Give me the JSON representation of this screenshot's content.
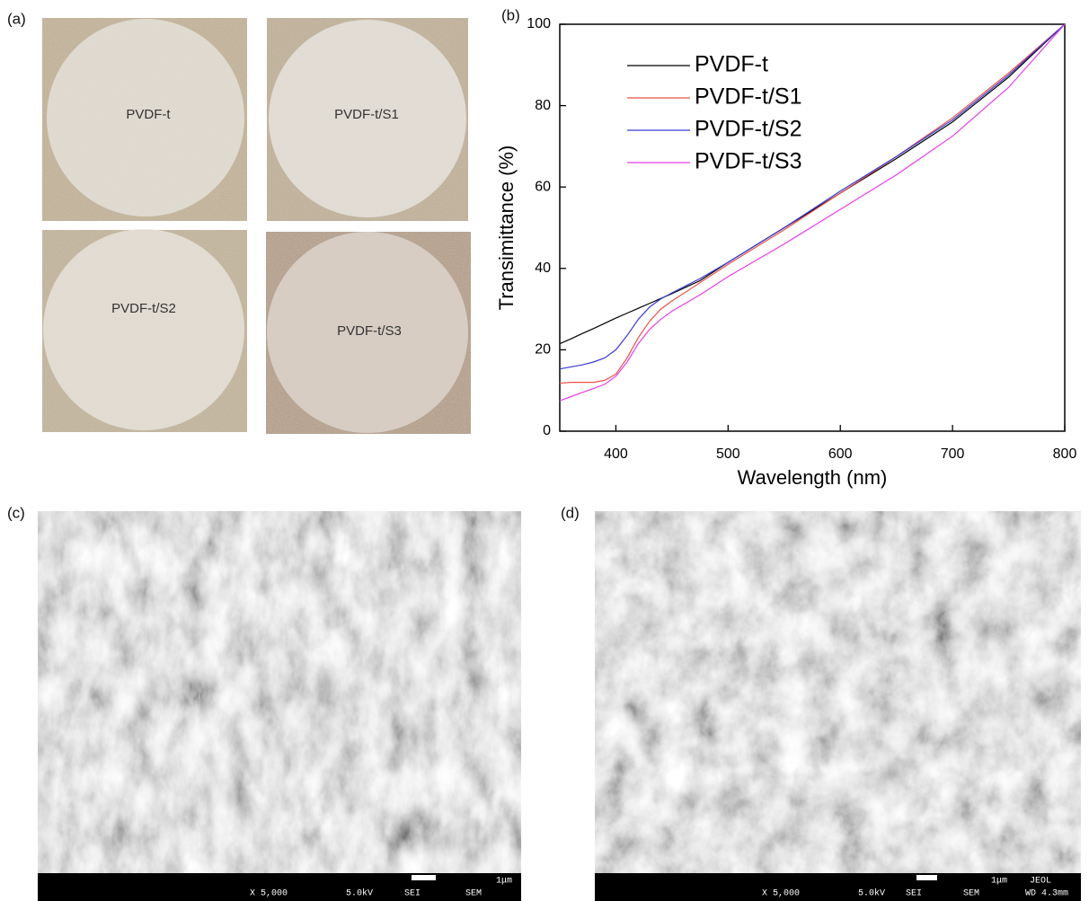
{
  "panels": {
    "a": {
      "label": "(a)",
      "samples": [
        "PVDF-t",
        "PVDF-t/S1",
        "PVDF-t/S2",
        "PVDF-t/S3"
      ]
    },
    "b": {
      "label": "(b)"
    },
    "c": {
      "label": "(c)",
      "info": [
        "X 5,000",
        "5.0kV",
        "SEI",
        "SEM",
        "1μm"
      ]
    },
    "d": {
      "label": "(d)",
      "info": [
        "X 5,000",
        "5.0kV",
        "SEI",
        "SEM",
        "1μm",
        "JEOL",
        "WD 4.3mm"
      ]
    }
  },
  "chart_data": {
    "type": "line",
    "xlabel": "Wavelength (nm)",
    "ylabel": "Transimittance (%)",
    "x": [
      350,
      360,
      370,
      380,
      390,
      400,
      410,
      420,
      430,
      440,
      450,
      475,
      500,
      550,
      600,
      650,
      700,
      750,
      800
    ],
    "series": [
      {
        "name": "PVDF-t",
        "color": "#000000",
        "values": [
          21.5,
          22.7,
          24,
          25.2,
          26.5,
          27.8,
          29,
          30.2,
          31.4,
          32.6,
          33.8,
          37,
          41.5,
          50,
          58.5,
          67,
          76,
          87,
          100
        ]
      },
      {
        "name": "PVDF-t/S1",
        "color": "#e8504a",
        "values": [
          11.8,
          12,
          12,
          12,
          12.5,
          14,
          18,
          23,
          27,
          30,
          32,
          36.5,
          41,
          49.5,
          58.5,
          67.5,
          77,
          88,
          100
        ]
      },
      {
        "name": "PVDF-t/S2",
        "color": "#3a3ad4",
        "values": [
          15.3,
          15.8,
          16.3,
          17,
          18,
          20,
          23.5,
          27.5,
          30.5,
          32.5,
          34,
          37.5,
          41.5,
          50,
          59,
          67.5,
          76.5,
          87.5,
          100
        ]
      },
      {
        "name": "PVDF-t/S3",
        "color": "#e63ee6",
        "values": [
          7.5,
          8.5,
          9.5,
          10.5,
          11.5,
          13.5,
          17,
          21.5,
          25,
          27.5,
          29.5,
          33.5,
          38,
          46,
          54.5,
          63,
          72.5,
          84.5,
          100
        ]
      }
    ],
    "xlim": [
      350,
      800
    ],
    "xticks": [
      400,
      500,
      600,
      700,
      800
    ],
    "ylim": [
      0,
      100
    ],
    "yticks": [
      0,
      20,
      40,
      60,
      80,
      100
    ],
    "legend": "upper left"
  }
}
